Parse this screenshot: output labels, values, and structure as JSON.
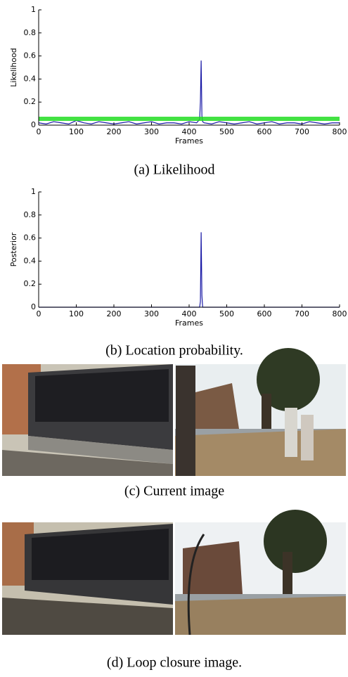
{
  "chart_data": [
    {
      "type": "line",
      "caption": "(a) Likelihood",
      "ylabel": "Likelihood",
      "xlabel": "Frames",
      "xlim": [
        0,
        800
      ],
      "ylim": [
        0,
        1
      ],
      "xticks": [
        0,
        100,
        200,
        300,
        400,
        500,
        600,
        700,
        800
      ],
      "yticks": [
        0,
        0.2,
        0.4,
        0.6,
        0.8,
        1
      ],
      "series": [
        {
          "color": "#1a1aa6",
          "x": [
            0,
            20,
            40,
            60,
            80,
            100,
            120,
            140,
            160,
            180,
            200,
            220,
            240,
            260,
            280,
            300,
            320,
            340,
            360,
            380,
            400,
            420,
            428,
            430,
            432,
            434,
            436,
            440,
            460,
            480,
            500,
            520,
            540,
            560,
            580,
            600,
            620,
            640,
            660,
            680,
            700,
            720,
            740,
            760,
            780,
            800
          ],
          "values": [
            0.02,
            0.01,
            0.03,
            0.02,
            0.01,
            0.04,
            0.02,
            0.01,
            0.03,
            0.02,
            0.01,
            0.02,
            0.03,
            0.01,
            0.02,
            0.03,
            0.01,
            0.02,
            0.02,
            0.01,
            0.03,
            0.02,
            0.05,
            0.2,
            0.56,
            0.08,
            0.03,
            0.02,
            0.01,
            0.03,
            0.02,
            0.01,
            0.02,
            0.03,
            0.01,
            0.02,
            0.03,
            0.01,
            0.02,
            0.02,
            0.01,
            0.03,
            0.02,
            0.01,
            0.02,
            0.02
          ]
        },
        {
          "color": "#22dd22",
          "x": [
            0,
            800
          ],
          "values": [
            0.055,
            0.055
          ]
        }
      ]
    },
    {
      "type": "line",
      "caption": "(b) Location probability.",
      "ylabel": "Posterior",
      "xlabel": "Frames",
      "xlim": [
        0,
        800
      ],
      "ylim": [
        0,
        1
      ],
      "xticks": [
        0,
        100,
        200,
        300,
        400,
        500,
        600,
        700,
        800
      ],
      "yticks": [
        0,
        0.2,
        0.4,
        0.6,
        0.8,
        1
      ],
      "series": [
        {
          "color": "#1a1aa6",
          "x": [
            0,
            100,
            200,
            300,
            400,
            428,
            430,
            432,
            434,
            436,
            500,
            600,
            700,
            800
          ],
          "values": [
            0,
            0,
            0,
            0,
            0,
            0,
            0.05,
            0.65,
            0.1,
            0,
            0,
            0,
            0,
            0
          ]
        }
      ]
    }
  ],
  "figures": [
    {
      "caption": "(c) Current image"
    },
    {
      "caption": "(d) Loop closure image."
    }
  ]
}
